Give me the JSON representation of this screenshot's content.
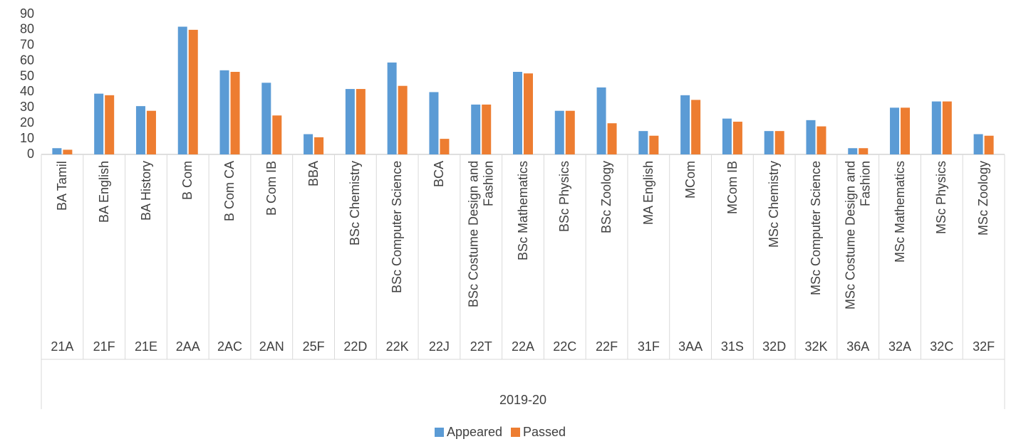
{
  "chart_data": {
    "type": "bar",
    "categories": [
      "BA Tamil",
      "BA English",
      "BA History",
      "B Com",
      "B Com CA",
      "B Com IB",
      "BBA",
      "BSc Chemistry",
      "BSc Computer Science",
      "BCA",
      "BSc Costume Design and Fashion",
      "BSc Mathematics",
      "BSc Physics",
      "BSc Zoology",
      "MA English",
      "MCom",
      "MCom IB",
      "MSc Chemistry",
      "MSc Computer Science",
      "MSc Costume Design and Fashion",
      "MSc Mathematics",
      "MSc Physics",
      "MSc Zoology"
    ],
    "codes": [
      "21A",
      "21F",
      "21E",
      "2AA",
      "2AC",
      "2AN",
      "25F",
      "22D",
      "22K",
      "22J",
      "22T",
      "22A",
      "22C",
      "22F",
      "31F",
      "3AA",
      "31S",
      "32D",
      "32K",
      "36A",
      "32A",
      "32C",
      "32F"
    ],
    "group_label": "2019-20",
    "series": [
      {
        "name": "Appeared",
        "color": "#5b9bd5",
        "values": [
          4,
          39,
          31,
          82,
          54,
          46,
          13,
          42,
          59,
          40,
          32,
          53,
          28,
          43,
          15,
          38,
          23,
          15,
          22,
          4,
          30,
          34,
          13
        ]
      },
      {
        "name": "Passed",
        "color": "#ed7d31",
        "values": [
          3,
          38,
          28,
          80,
          53,
          25,
          11,
          42,
          44,
          10,
          32,
          52,
          28,
          20,
          12,
          35,
          21,
          15,
          18,
          4,
          30,
          34,
          12
        ]
      }
    ],
    "ylim": [
      0,
      90
    ],
    "yticks": [
      0,
      10,
      20,
      30,
      40,
      50,
      60,
      70,
      80,
      90
    ],
    "grid": false,
    "legend": "bottom"
  }
}
